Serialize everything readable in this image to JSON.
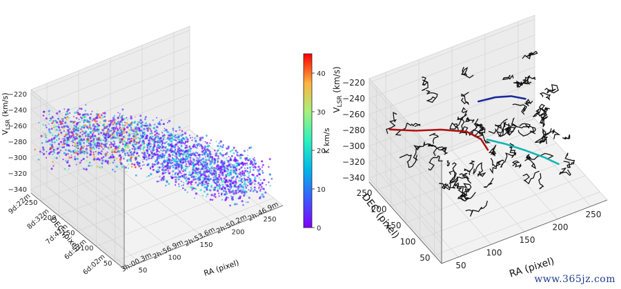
{
  "chart_data": [
    {
      "type": "scatter",
      "projection": "3d",
      "ylabel": "RA (pixel)",
      "xlabel": "DEC (pixel)",
      "zlabel_main": "V",
      "zlabel_sub": "LSR",
      "zlabel_unit": " (km/s)",
      "ra_ticks": [
        "50",
        "100",
        "150",
        "200",
        "250"
      ],
      "ra_coord_ticks": [
        "3h:00.3m",
        "2h:56.9m",
        "2h:53.6m",
        "2h:50.2m",
        "2h:46.9m"
      ],
      "dec_ticks": [
        "50",
        "100",
        "150",
        "200",
        "250"
      ],
      "dec_coord_ticks": [
        "6d:02m",
        "6d:52m",
        "7d:42m",
        "8d:32m",
        "9d:22m"
      ],
      "v_ticks": [
        -220,
        -240,
        -260,
        -280,
        -300,
        -320,
        -340
      ],
      "zlim": [
        -345,
        -215
      ],
      "colorbar": {
        "label": "K km/s",
        "range": [
          0,
          45
        ],
        "ticks": [
          0,
          10,
          20,
          30,
          40
        ],
        "colormap": "rainbow"
      },
      "grid": true
    },
    {
      "type": "line",
      "projection": "3d",
      "ylabel": "RA (pixel)",
      "xlabel": "DEC (pixel)",
      "zlabel_main": "V",
      "zlabel_sub": "LSR",
      "zlabel_unit": " (km/s)",
      "ra_ticks": [
        "50",
        "100",
        "150",
        "200",
        "250"
      ],
      "dec_ticks": [
        "50",
        "100",
        "150",
        "200",
        "250"
      ],
      "v_ticks": [
        -220,
        -240,
        -260,
        -280,
        -300,
        -320,
        -340
      ],
      "zlim": [
        -345,
        -215
      ],
      "grid": true,
      "highlight_colors": [
        "#b01010",
        "#1a2a9a",
        "#11b5b5"
      ]
    }
  ],
  "watermark": "www.365jz.com"
}
